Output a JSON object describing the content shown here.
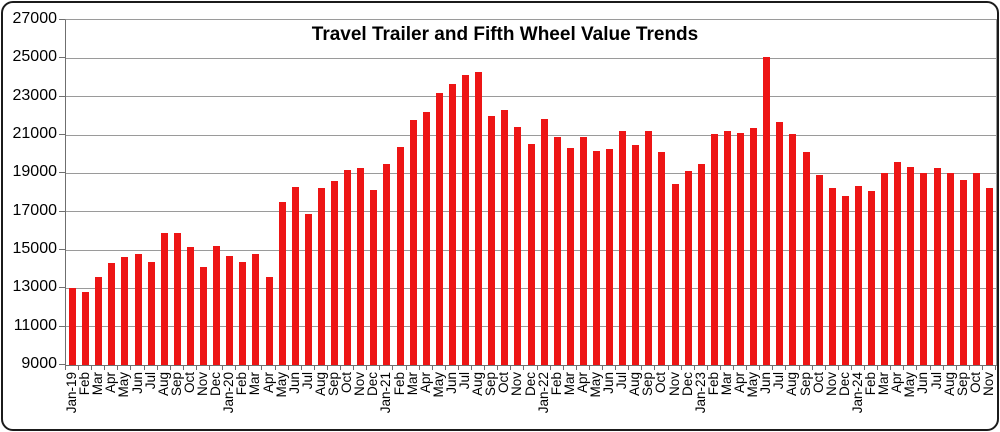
{
  "frame": {
    "background": "#ffffff",
    "border_color": "#1b1b1b"
  },
  "chart_data": {
    "type": "bar",
    "title": "Travel Trailer and Fifth Wheel Value Trends",
    "xlabel": "",
    "ylabel": "",
    "ylim": [
      9000,
      27000
    ],
    "yticks": [
      9000,
      11000,
      13000,
      15000,
      17000,
      19000,
      21000,
      23000,
      25000,
      27000
    ],
    "grid": true,
    "legend_position": "none",
    "bar_color": "#ed1515",
    "gridline_color": "#9a9a9a",
    "axis_color": "#6f6f6f",
    "text_color": "#000000",
    "categories": [
      "Jan-19",
      "Feb",
      "Mar",
      "Apr",
      "May",
      "Jun",
      "Jul",
      "Aug",
      "Sep",
      "Oct",
      "Nov",
      "Dec",
      "Jan-20",
      "Feb",
      "Mar",
      "Apr",
      "May",
      "Jun",
      "Jul",
      "Aug",
      "Sep",
      "Oct",
      "Nov",
      "Dec",
      "Jan-21",
      "Feb",
      "Mar",
      "Apr",
      "May",
      "Jun",
      "Jul",
      "Aug",
      "Sep",
      "Oct",
      "Nov",
      "Dec",
      "Jan-22",
      "Feb",
      "Mar",
      "Apr",
      "May",
      "Jun",
      "Jul",
      "Aug",
      "Sep",
      "Oct",
      "Nov",
      "Dec",
      "Jan-23",
      "Feb",
      "Mar",
      "Apr",
      "May",
      "Jun",
      "Jul",
      "Aug",
      "Sep",
      "Oct",
      "Nov",
      "Dec",
      "Jan-24",
      "Feb",
      "Mar",
      "Apr",
      "May",
      "Jun",
      "Jul",
      "Aug",
      "Sep",
      "Oct",
      "Nov"
    ],
    "values": [
      13000,
      12800,
      13600,
      14300,
      14650,
      14800,
      14400,
      15900,
      15900,
      15150,
      14100,
      15200,
      14700,
      14400,
      14800,
      13600,
      17500,
      18300,
      16900,
      18250,
      18600,
      19150,
      19300,
      18150,
      19500,
      20400,
      21800,
      22200,
      23200,
      23650,
      24150,
      24300,
      22000,
      22300,
      21400,
      20550,
      21850,
      20900,
      20300,
      20900,
      20150,
      20250,
      21200,
      20500,
      21200,
      20100,
      18450,
      19100,
      19500,
      21050,
      21200,
      21100,
      21350,
      25050,
      21700,
      21050,
      20100,
      18900,
      18250,
      17800,
      18350,
      18100,
      19000,
      19600,
      19350,
      19000,
      19300,
      19000,
      18650,
      19000,
      18250
    ]
  }
}
